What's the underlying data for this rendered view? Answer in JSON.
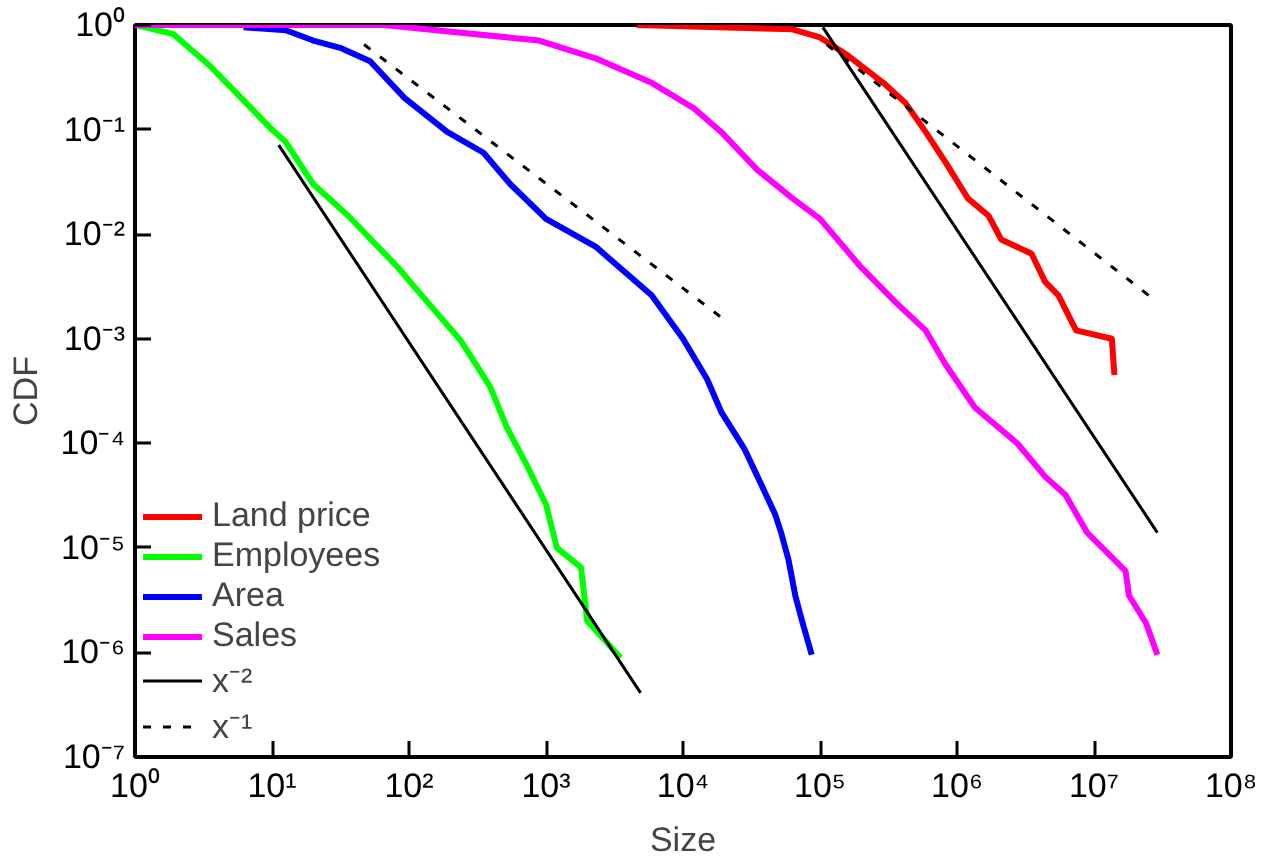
{
  "chart_data": {
    "type": "line",
    "xlabel": "Size",
    "ylabel": "CDF",
    "log": "xy",
    "grid": false,
    "legend": "bottom left",
    "marker": "none",
    "xlim": [
      1,
      100000000
    ],
    "ylim": [
      1e-07,
      1
    ],
    "xticks": [
      {
        "value": 1,
        "label": "10⁰"
      },
      {
        "value": 10,
        "label": "10¹"
      },
      {
        "value": 100,
        "label": "10²"
      },
      {
        "value": 1000,
        "label": "10³"
      },
      {
        "value": 10000,
        "label": "10⁴"
      },
      {
        "value": 100000,
        "label": "10⁵"
      },
      {
        "value": 1000000,
        "label": "10⁶"
      },
      {
        "value": 10000000,
        "label": "10⁷"
      },
      {
        "value": 100000000,
        "label": "10⁸"
      }
    ],
    "yticks": [
      {
        "value": 1e-07,
        "label": "10⁻⁷"
      },
      {
        "value": 1e-06,
        "label": "10⁻⁶"
      },
      {
        "value": 1e-05,
        "label": "10⁻⁵"
      },
      {
        "value": 0.0001,
        "label": "10⁻⁴"
      },
      {
        "value": 0.001,
        "label": "10⁻³"
      },
      {
        "value": 0.01,
        "label": "10⁻²"
      },
      {
        "value": 0.1,
        "label": "10⁻¹"
      },
      {
        "value": 1,
        "label": "10⁰"
      }
    ],
    "series": [
      {
        "name": "Land price",
        "color": "#ff0000",
        "x": [
          4600,
          63000,
          100000,
          160000,
          290000,
          420000,
          590000,
          830000,
          1200000,
          1700000,
          2100000,
          3500000,
          4400000,
          5500000,
          7400000,
          13500000,
          14100000
        ],
        "values": [
          1,
          0.91,
          0.76,
          0.51,
          0.28,
          0.18,
          0.095,
          0.048,
          0.022,
          0.015,
          0.0089,
          0.0065,
          0.0035,
          0.0026,
          0.0012,
          0.001,
          0.00045
        ]
      },
      {
        "name": "Employees",
        "color": "#00ff00",
        "x": [
          1,
          1.9,
          3.5,
          10,
          12.6,
          20,
          36,
          83,
          170,
          240,
          390,
          520,
          710,
          1000,
          1200,
          1800,
          2000,
          3500
        ],
        "values": [
          1,
          0.82,
          0.41,
          0.1,
          0.076,
          0.03,
          0.015,
          0.0048,
          0.0016,
          0.00095,
          0.00035,
          0.00014,
          6.5e-05,
          2.6e-05,
          1e-05,
          6.5e-06,
          2e-06,
          8.9e-07
        ]
      },
      {
        "name": "Area",
        "color": "#0000ff",
        "x": [
          6.2,
          12.6,
          20,
          32,
          52,
          93,
          190,
          350,
          550,
          1000,
          2300,
          5900,
          10000,
          15000,
          19000,
          28000,
          35000,
          47000,
          52000,
          59000,
          66000,
          74000,
          87000
        ],
        "values": [
          0.95,
          0.89,
          0.71,
          0.6,
          0.45,
          0.2,
          0.095,
          0.06,
          0.03,
          0.014,
          0.0076,
          0.0026,
          0.001,
          0.00041,
          0.0002,
          8.9e-05,
          4.8e-05,
          2.1e-05,
          1.4e-05,
          7.6e-06,
          3.5e-06,
          2e-06,
          9.5e-07
        ]
      },
      {
        "name": "Sales",
        "color": "#ff00ff",
        "x": [
          1,
          66,
          890,
          2300,
          5900,
          12000,
          19000,
          35000,
          63000,
          100000,
          200000,
          360000,
          590000,
          830000,
          1350000,
          2750000,
          4400000,
          6200000,
          8900000,
          12600000,
          17000000,
          18000000,
          24000000,
          29000000
        ],
        "values": [
          1,
          1,
          0.71,
          0.48,
          0.28,
          0.16,
          0.095,
          0.041,
          0.022,
          0.014,
          0.0048,
          0.0022,
          0.0012,
          0.00056,
          0.00022,
          0.0001,
          4.8e-05,
          3.2e-05,
          1.4e-05,
          8.9e-06,
          6e-06,
          3.5e-06,
          1.9e-06,
          9.5e-07
        ]
      },
      {
        "name": "x⁻²",
        "color": "#000000",
        "line_style": "solid",
        "x": [
          11.2,
          4900,
          null,
          105000,
          29000000
        ],
        "values": [
          0.071,
          4.1e-07,
          null,
          0.95,
          1.4e-05
        ]
      },
      {
        "name": "x⁻¹",
        "color": "#000000",
        "line_style": "dashed",
        "x": [
          47,
          19000,
          null,
          112000,
          26000000
        ],
        "values": [
          0.65,
          0.0016,
          null,
          0.65,
          0.0025
        ]
      }
    ]
  }
}
